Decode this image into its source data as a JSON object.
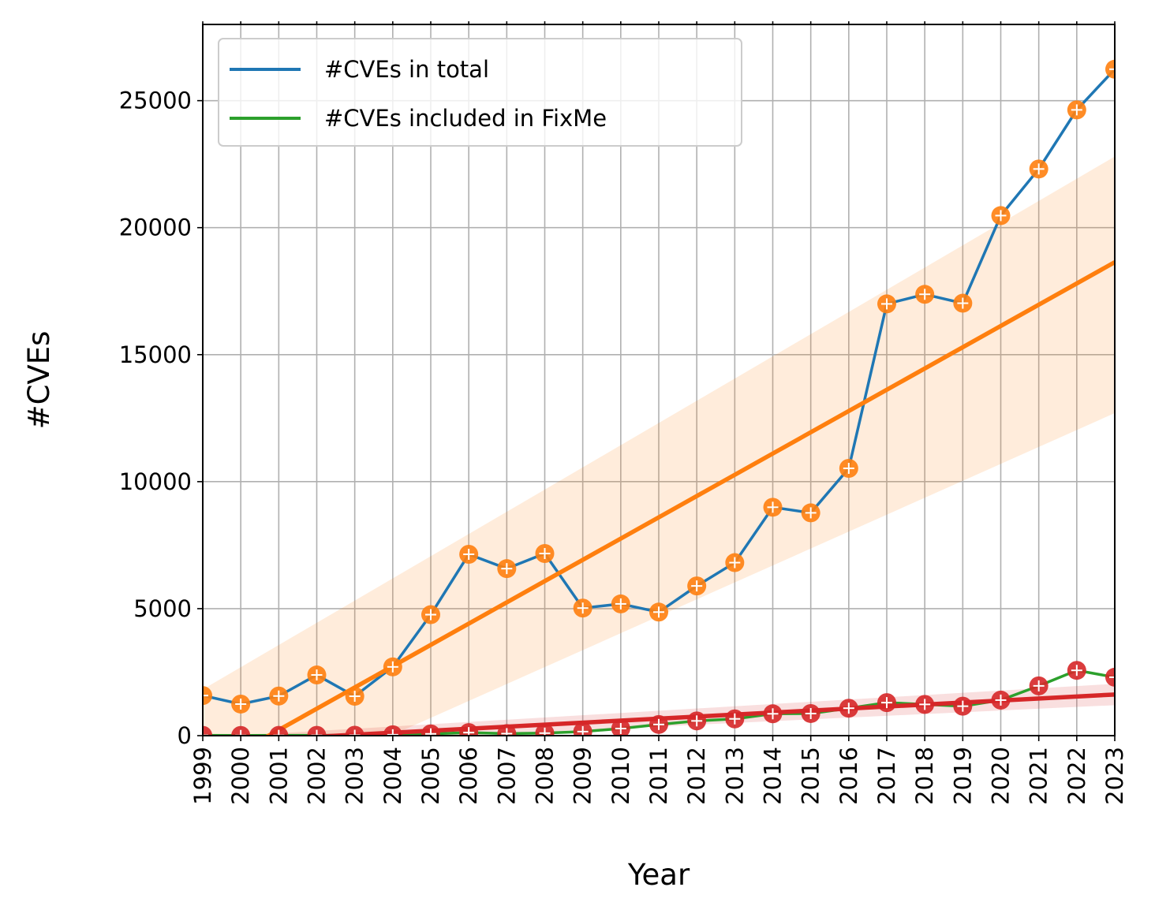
{
  "chart_data": {
    "type": "line",
    "xlabel": "Year",
    "ylabel": "#CVEs",
    "ylim": [
      0,
      28000
    ],
    "grid": true,
    "legend_position": "upper-left",
    "x": [
      1999,
      2000,
      2001,
      2002,
      2003,
      2004,
      2005,
      2006,
      2007,
      2008,
      2009,
      2010,
      2011,
      2012,
      2013,
      2014,
      2015,
      2016,
      2017,
      2018,
      2019,
      2020,
      2021,
      2022,
      2023
    ],
    "x_tick_labels": [
      "1999",
      "2000",
      "2001",
      "2002",
      "2003",
      "2004",
      "2005",
      "2006",
      "2007",
      "2008",
      "2009",
      "2010",
      "2011",
      "2012",
      "2013",
      "2014",
      "2015",
      "2016",
      "2017",
      "2018",
      "2019",
      "2020",
      "2021",
      "2022",
      "2023"
    ],
    "y_ticks": [
      0,
      5000,
      10000,
      15000,
      20000,
      25000
    ],
    "y_tick_labels": [
      "0",
      "5000",
      "10000",
      "15000",
      "20000",
      "25000"
    ],
    "series": [
      {
        "name": "#CVEs in total",
        "color": "#1f77b4",
        "marker_color": "#ff7f0e",
        "values": [
          1579,
          1243,
          1560,
          2389,
          1551,
          2707,
          4764,
          7140,
          6576,
          7170,
          5023,
          5187,
          4865,
          5894,
          6812,
          8992,
          8772,
          10524,
          16998,
          17375,
          17025,
          20475,
          22309,
          24636,
          26237
        ]
      },
      {
        "name": "#CVEs included in FixMe",
        "color": "#2ca02c",
        "marker_color": "#d62728",
        "values": [
          12,
          8,
          10,
          12,
          16,
          35,
          70,
          120,
          80,
          100,
          160,
          280,
          440,
          580,
          660,
          860,
          870,
          1080,
          1300,
          1230,
          1160,
          1400,
          1960,
          2570,
          2300
        ]
      }
    ],
    "regressions": [
      {
        "color": "#ff7f0e",
        "band_color": "#ff7f0e",
        "x": [
          1999,
          2023
        ],
        "y": [
          -1450,
          18640
        ],
        "band_low": [
          -3300,
          12700
        ],
        "band_high": [
          1820,
          22800
        ]
      },
      {
        "color": "#d62728",
        "band_color": "#d62728",
        "x": [
          1999,
          2023
        ],
        "y": [
          -280,
          1620
        ],
        "band_low": [
          -480,
          1200
        ],
        "band_high": [
          -80,
          2040
        ]
      }
    ]
  }
}
